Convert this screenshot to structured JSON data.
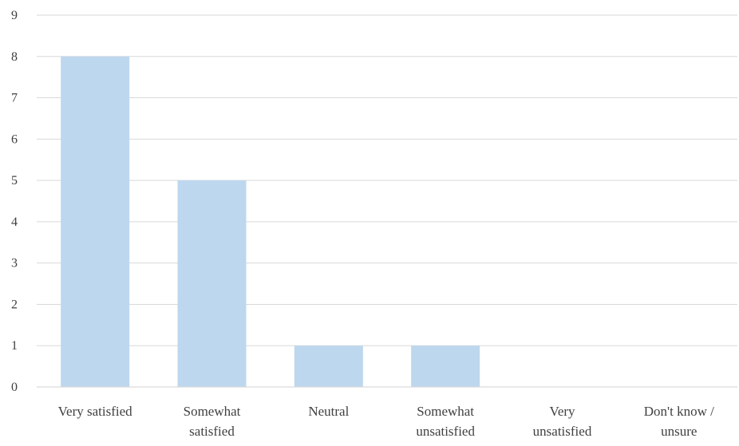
{
  "chart_data": {
    "type": "bar",
    "categories": [
      "Very satisfied",
      "Somewhat satisfied",
      "Neutral",
      "Somewhat unsatisfied",
      "Very unsatisfied",
      "Don't know / unsure"
    ],
    "category_lines": [
      [
        "Very satisfied"
      ],
      [
        "Somewhat",
        "satisfied"
      ],
      [
        "Neutral"
      ],
      [
        "Somewhat",
        "unsatisfied"
      ],
      [
        "Very",
        "unsatisfied"
      ],
      [
        "Don't know /",
        "unsure"
      ]
    ],
    "values": [
      8,
      5,
      1,
      1,
      0,
      0
    ],
    "ylim": [
      0,
      9
    ],
    "yticks": [
      "0",
      "1",
      "2",
      "3",
      "4",
      "5",
      "6",
      "7",
      "8",
      "9"
    ],
    "grid": true,
    "bar_color": "#bdd7ee",
    "grid_color": "#d9d9d9",
    "axis_color": "#d9d9d9",
    "text_color": "#404040"
  }
}
